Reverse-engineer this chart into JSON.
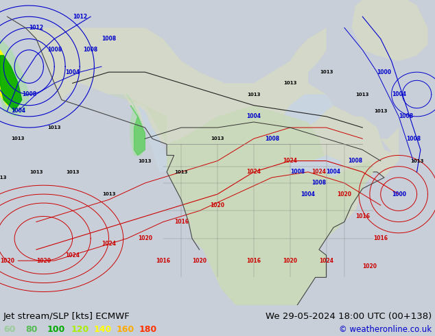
{
  "title_left": "Jet stream/SLP [kts] ECMWF",
  "title_right": "We 29-05-2024 18:00 UTC (00+138)",
  "copyright": "© weatheronline.co.uk",
  "legend_values": [
    "60",
    "80",
    "100",
    "120",
    "140",
    "160",
    "180"
  ],
  "legend_colors": [
    "#99cc99",
    "#55bb55",
    "#00aa00",
    "#aaee00",
    "#ffff00",
    "#ffaa00",
    "#ff3300"
  ],
  "bg_color": "#c8cfd8",
  "bottom_bar_color": "#c8cfd8",
  "figsize": [
    6.34,
    4.9
  ],
  "dpi": 100,
  "bottom_text_color": "#000000",
  "copyright_color": "#0000cc",
  "title_font_size": 9.5,
  "legend_font_size": 9,
  "map_bg_light": "#e0e4d8",
  "map_bg_ocean": "#c8d4e0",
  "land_color": "#d4d8c8",
  "land_green_color": "#c8d8b8",
  "jet_green_dark": "#00aa00",
  "jet_green_mid": "#55cc55",
  "jet_green_light": "#aaddaa",
  "jet_yellow": "#ffff00",
  "jet_yellow_bright": "#ddff00",
  "slp_red": "#cc0000",
  "slp_blue": "#0000cc",
  "slp_black": "#000000",
  "coast_color": "#444444",
  "border_color": "#888888",
  "contour_linewidth": 0.6
}
